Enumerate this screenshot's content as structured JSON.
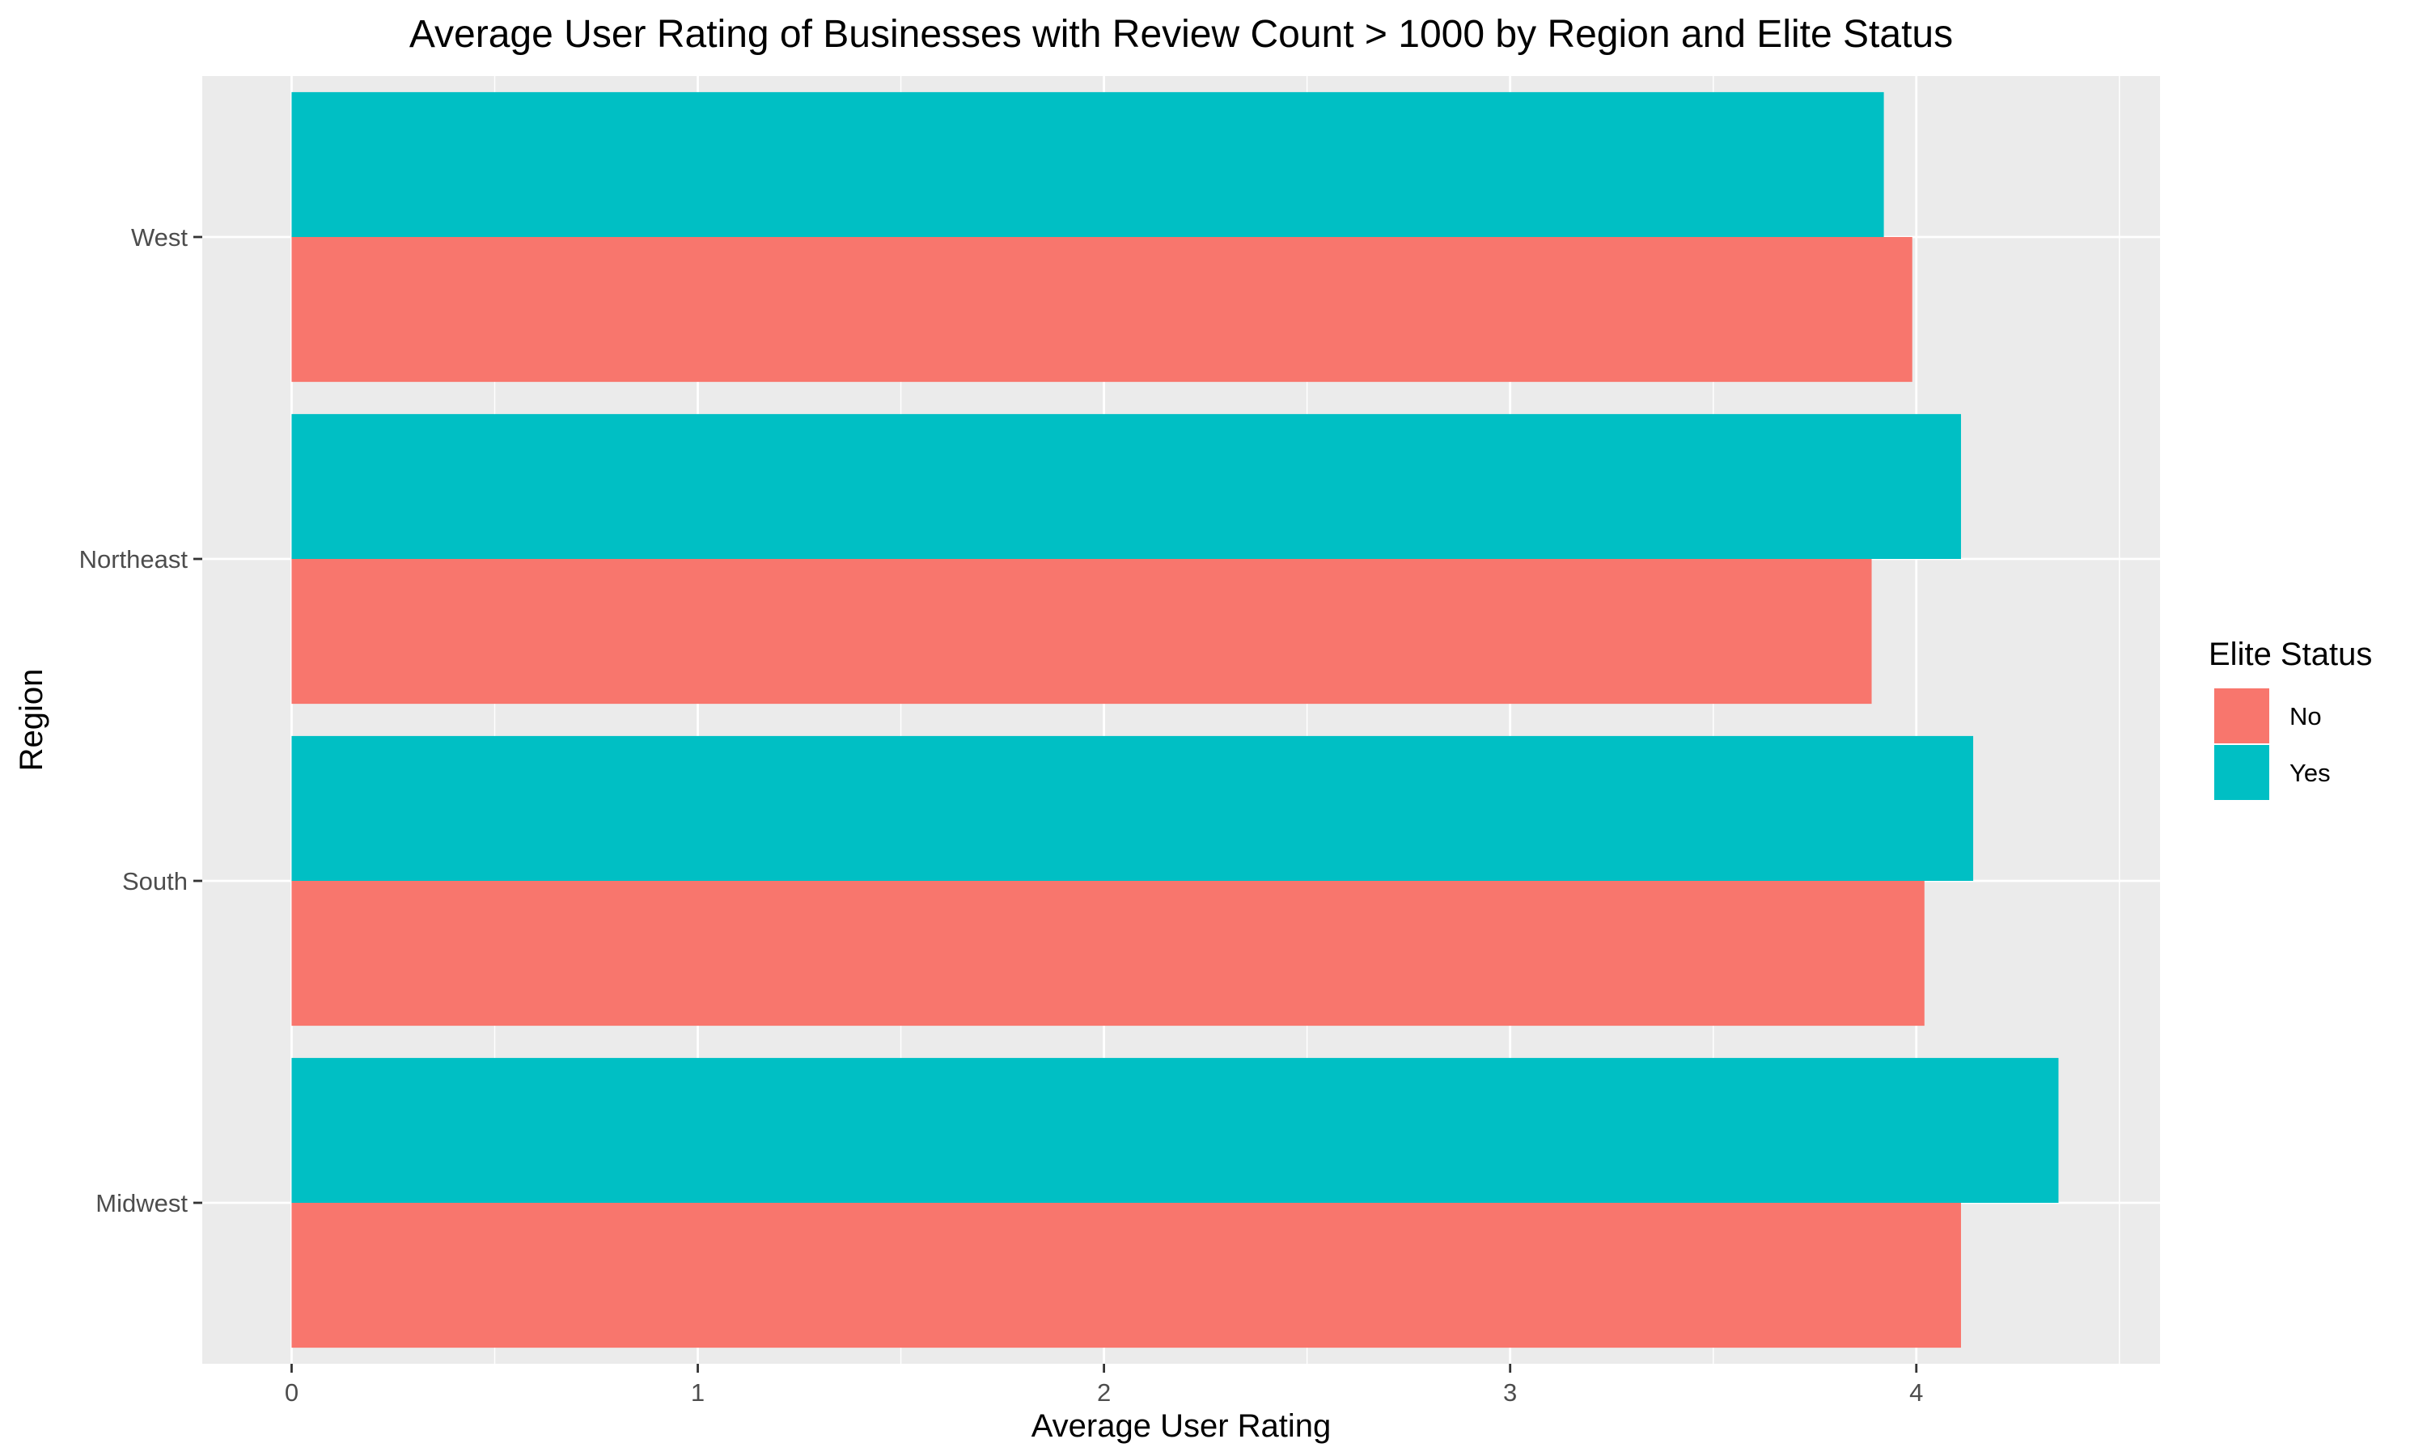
{
  "chart_data": {
    "type": "bar",
    "orientation": "horizontal",
    "title": "Average User Rating of Businesses with Review Count > 1000 by Region and Elite Status",
    "xlabel": "Average User Rating",
    "ylabel": "Region",
    "categories": [
      "Midwest",
      "South",
      "Northeast",
      "West"
    ],
    "x_ticks": [
      "0",
      "1",
      "2",
      "3",
      "4"
    ],
    "xlim": [
      -0.22,
      4.6
    ],
    "grid": true,
    "legend": {
      "title": "Elite Status",
      "placement": "right"
    },
    "series": [
      {
        "name": "No",
        "color": "#F8766D",
        "values": [
          4.11,
          4.02,
          3.89,
          3.99
        ]
      },
      {
        "name": "Yes",
        "color": "#00BFC4",
        "values": [
          4.35,
          4.14,
          4.11,
          3.92
        ]
      }
    ]
  }
}
